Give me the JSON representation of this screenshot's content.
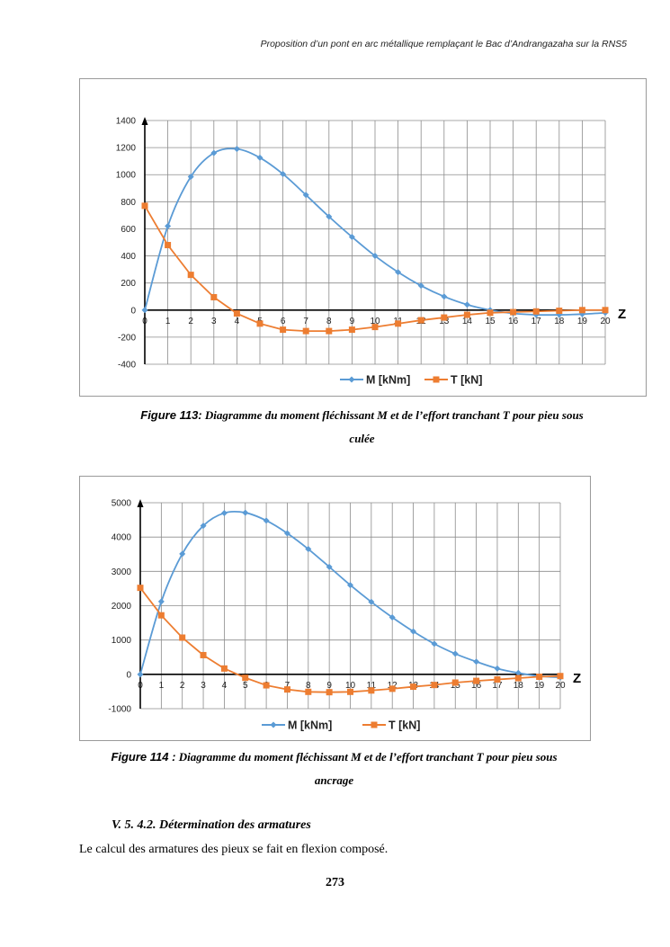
{
  "header": {
    "running_title": "Proposition d’un pont en arc métallique remplaçant le Bac d’Andrangazaha sur la RNS5"
  },
  "chart_data": [
    {
      "type": "line",
      "title": "",
      "xlabel": "Z",
      "ylabel": "",
      "x": [
        0,
        1,
        2,
        3,
        4,
        5,
        6,
        7,
        8,
        9,
        10,
        11,
        12,
        13,
        14,
        15,
        16,
        17,
        18,
        19,
        20
      ],
      "xlim": [
        0,
        20
      ],
      "ylim": [
        -400,
        1400
      ],
      "yticks": [
        1400,
        1200,
        1000,
        800,
        600,
        400,
        200,
        0,
        -200,
        -400
      ],
      "legend_position": "bottom",
      "series": [
        {
          "name": "M [kNm]",
          "color": "#5b9bd5",
          "marker": "diamond",
          "smooth": true,
          "values": [
            0,
            620,
            985,
            1160,
            1190,
            1125,
            1005,
            850,
            690,
            540,
            400,
            280,
            180,
            100,
            40,
            0,
            -25,
            -35,
            -35,
            -30,
            -20
          ]
        },
        {
          "name": "T [kN]",
          "color": "#ed7d31",
          "marker": "square",
          "smooth": false,
          "values": [
            770,
            480,
            260,
            95,
            -25,
            -100,
            -145,
            -155,
            -155,
            -145,
            -125,
            -100,
            -75,
            -55,
            -35,
            -20,
            -15,
            -10,
            -5,
            0,
            0
          ]
        }
      ]
    },
    {
      "type": "line",
      "title": "",
      "xlabel": "Z",
      "ylabel": "",
      "x": [
        0,
        1,
        2,
        3,
        4,
        5,
        6,
        7,
        8,
        9,
        10,
        11,
        12,
        13,
        14,
        15,
        16,
        17,
        18,
        19,
        20
      ],
      "xlim": [
        0,
        20
      ],
      "ylim": [
        -1000,
        5000
      ],
      "yticks": [
        5000,
        4000,
        3000,
        2000,
        1000,
        0,
        -1000
      ],
      "legend_position": "bottom",
      "series": [
        {
          "name": "M [kNm]",
          "color": "#5b9bd5",
          "marker": "diamond",
          "smooth": true,
          "values": [
            0,
            2120,
            3510,
            4330,
            4700,
            4710,
            4480,
            4110,
            3650,
            3130,
            2600,
            2110,
            1660,
            1250,
            890,
            600,
            370,
            170,
            40,
            -50,
            -90
          ]
        },
        {
          "name": "T [kN]",
          "color": "#ed7d31",
          "marker": "square",
          "smooth": false,
          "values": [
            2520,
            1720,
            1070,
            560,
            170,
            -100,
            -320,
            -440,
            -510,
            -520,
            -510,
            -470,
            -420,
            -360,
            -310,
            -240,
            -190,
            -150,
            -110,
            -70,
            -50
          ]
        }
      ]
    }
  ],
  "figures": [
    {
      "label": "Figure 113:",
      "caption_line1": "Diagramme du moment fléchissant M et de l’effort tranchant T pour pieu sous",
      "caption_line2": "culée"
    },
    {
      "label": "Figure 114 :",
      "caption_line1": "Diagramme du moment fléchissant M et de l’effort tranchant T pour pieu sous",
      "caption_line2": "ancrage"
    }
  ],
  "section": {
    "heading": "V. 5. 4.2. Détermination des armatures"
  },
  "body": {
    "text": "Le calcul des armatures des pieux se fait en flexion composé."
  },
  "page": {
    "number": "273"
  }
}
